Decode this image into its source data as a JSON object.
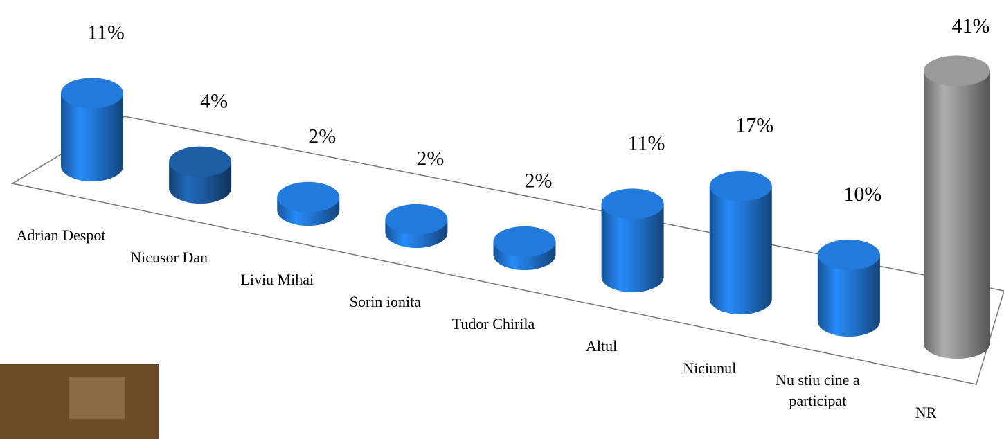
{
  "chart_data": {
    "type": "bar3d",
    "categories": [
      "Adrian Despot",
      "Nicusor Dan",
      "Liviu Mihai",
      "Sorin ionita",
      "Tudor Chirila",
      "Altul",
      "Niciunul",
      "Nu stiu cine a participat",
      "NR"
    ],
    "values": [
      11,
      4,
      2,
      2,
      2,
      11,
      17,
      10,
      41
    ],
    "value_labels": [
      "11%",
      "4%",
      "2%",
      "2%",
      "2%",
      "11%",
      "17%",
      "10%",
      "41%"
    ],
    "colors": [
      "#1f6fc8",
      "#1a5596",
      "#1f6fc8",
      "#1f6fc8",
      "#1f6fc8",
      "#1f6fc8",
      "#1f6fc8",
      "#1f6fc8",
      "#8c8c8c"
    ]
  }
}
